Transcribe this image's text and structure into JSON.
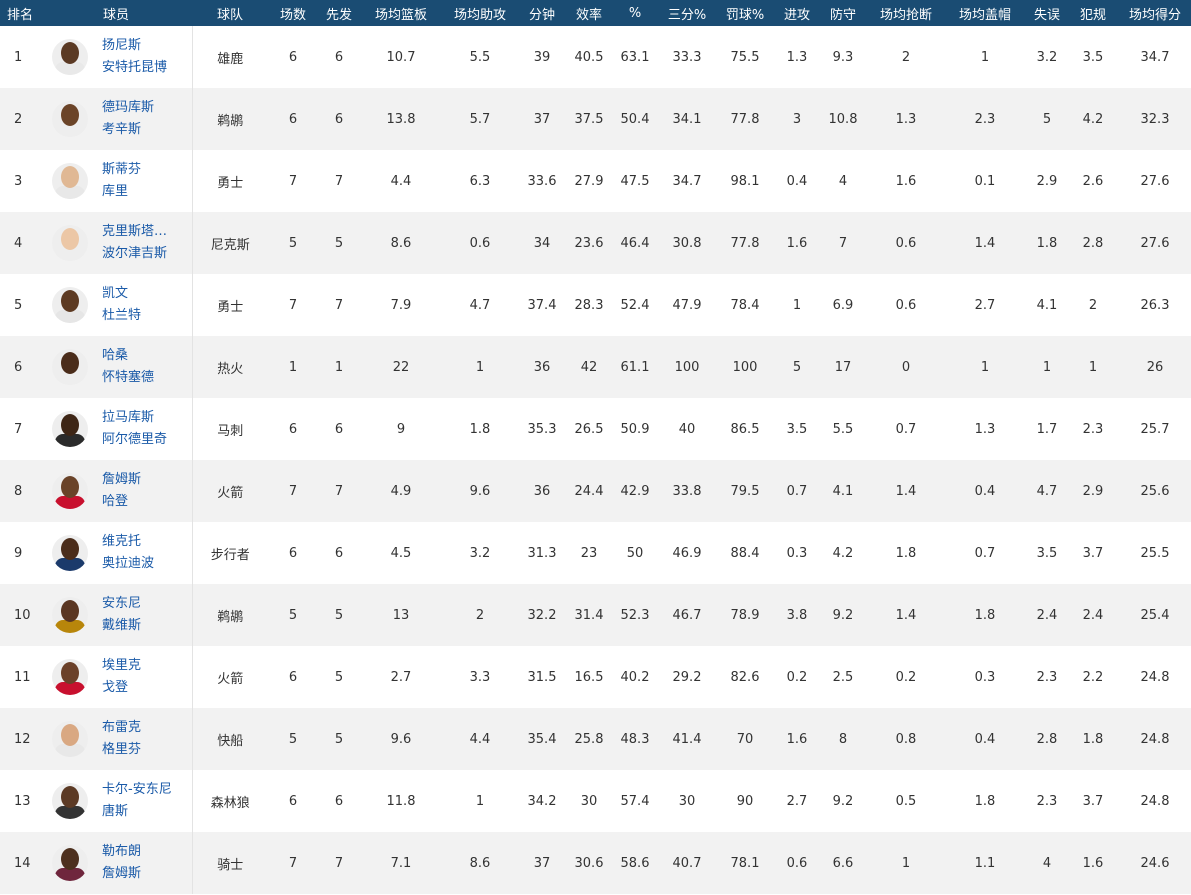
{
  "columns": [
    "排名",
    "球员",
    "球队",
    "场数",
    "先发",
    "场均篮板",
    "场均助攻",
    "分钟",
    "效率",
    "%",
    "三分%",
    "罚球%",
    "进攻",
    "防守",
    "场均抢断",
    "场均盖帽",
    "失误",
    "犯规",
    "场均得分"
  ],
  "rows": [
    {
      "rank": "1",
      "first": "扬尼斯",
      "last": "安特托昆博",
      "team": "雄鹿",
      "gp": "6",
      "gs": "6",
      "reb": "10.7",
      "ast": "5.5",
      "min": "39",
      "eff": "40.5",
      "fg": "63.1",
      "tp": "33.3",
      "ft": "75.5",
      "oreb": "1.3",
      "dreb": "9.3",
      "stl": "2",
      "blk": "1",
      "tov": "3.2",
      "pf": "3.5",
      "pts": "34.7",
      "skin": "#5b3a24",
      "jersey": "#e9e9e9"
    },
    {
      "rank": "2",
      "first": "德玛库斯",
      "last": "考辛斯",
      "team": "鹈鹕",
      "gp": "6",
      "gs": "6",
      "reb": "13.8",
      "ast": "5.7",
      "min": "37",
      "eff": "37.5",
      "fg": "50.4",
      "tp": "34.1",
      "ft": "77.8",
      "oreb": "3",
      "dreb": "10.8",
      "stl": "1.3",
      "blk": "2.3",
      "tov": "5",
      "pf": "4.2",
      "pts": "32.3",
      "skin": "#6b4428",
      "jersey": "#eeeeee"
    },
    {
      "rank": "3",
      "first": "斯蒂芬",
      "last": "库里",
      "team": "勇士",
      "gp": "7",
      "gs": "7",
      "reb": "4.4",
      "ast": "6.3",
      "min": "33.6",
      "eff": "27.9",
      "fg": "47.5",
      "tp": "34.7",
      "ft": "98.1",
      "oreb": "0.4",
      "dreb": "4",
      "stl": "1.6",
      "blk": "0.1",
      "tov": "2.9",
      "pf": "2.6",
      "pts": "27.6",
      "skin": "#e0b894",
      "jersey": "#e8e8e8"
    },
    {
      "rank": "4",
      "first": "克里斯塔…",
      "last": "波尔津吉斯",
      "team": "尼克斯",
      "gp": "5",
      "gs": "5",
      "reb": "8.6",
      "ast": "0.6",
      "min": "34",
      "eff": "23.6",
      "fg": "46.4",
      "tp": "30.8",
      "ft": "77.8",
      "oreb": "1.6",
      "dreb": "7",
      "stl": "0.6",
      "blk": "1.4",
      "tov": "1.8",
      "pf": "2.8",
      "pts": "27.6",
      "skin": "#ecc7a6",
      "jersey": "#eeeeee"
    },
    {
      "rank": "5",
      "first": "凯文",
      "last": "杜兰特",
      "team": "勇士",
      "gp": "7",
      "gs": "7",
      "reb": "7.9",
      "ast": "4.7",
      "min": "37.4",
      "eff": "28.3",
      "fg": "52.4",
      "tp": "47.9",
      "ft": "78.4",
      "oreb": "1",
      "dreb": "6.9",
      "stl": "0.6",
      "blk": "2.7",
      "tov": "4.1",
      "pf": "2",
      "pts": "26.3",
      "skin": "#5d3a22",
      "jersey": "#e6e6e6"
    },
    {
      "rank": "6",
      "first": "哈桑",
      "last": "怀特塞德",
      "team": "热火",
      "gp": "1",
      "gs": "1",
      "reb": "22",
      "ast": "1",
      "min": "36",
      "eff": "42",
      "fg": "61.1",
      "tp": "100",
      "ft": "100",
      "oreb": "5",
      "dreb": "17",
      "stl": "0",
      "blk": "1",
      "tov": "1",
      "pf": "1",
      "pts": "26",
      "skin": "#4a2c1a",
      "jersey": "#eeeeee"
    },
    {
      "rank": "7",
      "first": "拉马库斯",
      "last": "阿尔德里奇",
      "team": "马刺",
      "gp": "6",
      "gs": "6",
      "reb": "9",
      "ast": "1.8",
      "min": "35.3",
      "eff": "26.5",
      "fg": "50.9",
      "tp": "40",
      "ft": "86.5",
      "oreb": "3.5",
      "dreb": "5.5",
      "stl": "0.7",
      "blk": "1.3",
      "tov": "1.7",
      "pf": "2.3",
      "pts": "25.7",
      "skin": "#3e2616",
      "jersey": "#2b2b2b"
    },
    {
      "rank": "8",
      "first": "詹姆斯",
      "last": "哈登",
      "team": "火箭",
      "gp": "7",
      "gs": "7",
      "reb": "4.9",
      "ast": "9.6",
      "min": "36",
      "eff": "24.4",
      "fg": "42.9",
      "tp": "33.8",
      "ft": "79.5",
      "oreb": "0.7",
      "dreb": "4.1",
      "stl": "1.4",
      "blk": "0.4",
      "tov": "4.7",
      "pf": "2.9",
      "pts": "25.6",
      "skin": "#6a4329",
      "jersey": "#c8102e"
    },
    {
      "rank": "9",
      "first": "维克托",
      "last": "奥拉迪波",
      "team": "步行者",
      "gp": "6",
      "gs": "6",
      "reb": "4.5",
      "ast": "3.2",
      "min": "31.3",
      "eff": "23",
      "fg": "50",
      "tp": "46.9",
      "ft": "88.4",
      "oreb": "0.3",
      "dreb": "4.2",
      "stl": "1.8",
      "blk": "0.7",
      "tov": "3.5",
      "pf": "3.7",
      "pts": "25.5",
      "skin": "#4b2d1b",
      "jersey": "#1b3a6b"
    },
    {
      "rank": "10",
      "first": "安东尼",
      "last": "戴维斯",
      "team": "鹈鹕",
      "gp": "5",
      "gs": "5",
      "reb": "13",
      "ast": "2",
      "min": "32.2",
      "eff": "31.4",
      "fg": "52.3",
      "tp": "46.7",
      "ft": "78.9",
      "oreb": "3.8",
      "dreb": "9.2",
      "stl": "1.4",
      "blk": "1.8",
      "tov": "2.4",
      "pf": "2.4",
      "pts": "25.4",
      "skin": "#5a3622",
      "jersey": "#b8860b"
    },
    {
      "rank": "11",
      "first": "埃里克",
      "last": "戈登",
      "team": "火箭",
      "gp": "6",
      "gs": "5",
      "reb": "2.7",
      "ast": "3.3",
      "min": "31.5",
      "eff": "16.5",
      "fg": "40.2",
      "tp": "29.2",
      "ft": "82.6",
      "oreb": "0.2",
      "dreb": "2.5",
      "stl": "0.2",
      "blk": "0.3",
      "tov": "2.3",
      "pf": "2.2",
      "pts": "24.8",
      "skin": "#6b4129",
      "jersey": "#c8102e"
    },
    {
      "rank": "12",
      "first": "布雷克",
      "last": "格里芬",
      "team": "快船",
      "gp": "5",
      "gs": "5",
      "reb": "9.6",
      "ast": "4.4",
      "min": "35.4",
      "eff": "25.8",
      "fg": "48.3",
      "tp": "41.4",
      "ft": "70",
      "oreb": "1.6",
      "dreb": "8",
      "stl": "0.8",
      "blk": "0.4",
      "tov": "2.8",
      "pf": "1.8",
      "pts": "24.8",
      "skin": "#d9a882",
      "jersey": "#e8e8e8"
    },
    {
      "rank": "13",
      "first": "卡尔-安东尼",
      "last": "唐斯",
      "team": "森林狼",
      "gp": "6",
      "gs": "6",
      "reb": "11.8",
      "ast": "1",
      "min": "34.2",
      "eff": "30",
      "fg": "57.4",
      "tp": "30",
      "ft": "90",
      "oreb": "2.7",
      "dreb": "9.2",
      "stl": "0.5",
      "blk": "1.8",
      "tov": "2.3",
      "pf": "3.7",
      "pts": "24.8",
      "skin": "#5c3a25",
      "jersey": "#333333"
    },
    {
      "rank": "14",
      "first": "勒布朗",
      "last": "詹姆斯",
      "team": "骑士",
      "gp": "7",
      "gs": "7",
      "reb": "7.1",
      "ast": "8.6",
      "min": "37",
      "eff": "30.6",
      "fg": "58.6",
      "tp": "40.7",
      "ft": "78.1",
      "oreb": "0.6",
      "dreb": "6.6",
      "stl": "1",
      "blk": "1.1",
      "tov": "4",
      "pf": "1.6",
      "pts": "24.6",
      "skin": "#4d301e",
      "jersey": "#6f263d"
    }
  ]
}
